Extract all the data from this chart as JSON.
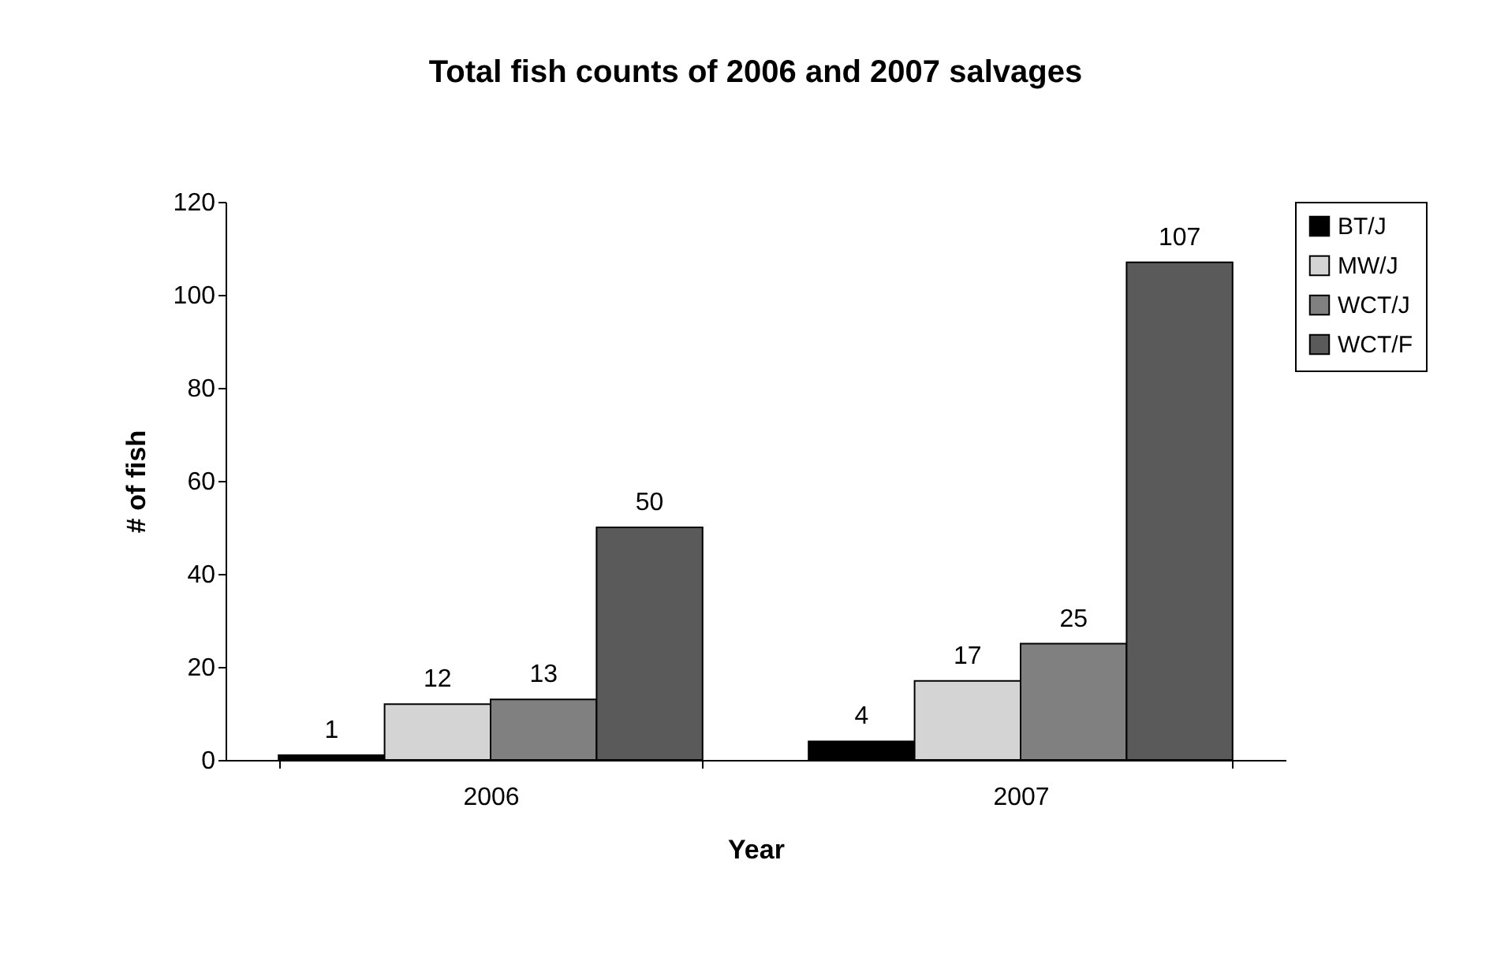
{
  "chart_data": {
    "type": "bar",
    "title": "Total fish counts of 2006 and 2007 salvages",
    "xlabel": "Year",
    "ylabel": "# of fish",
    "categories": [
      "2006",
      "2007"
    ],
    "series": [
      {
        "name": "BT/J",
        "color": "#000000",
        "values": [
          1,
          4
        ]
      },
      {
        "name": "MW/J",
        "color": "#d4d4d4",
        "values": [
          12,
          17
        ]
      },
      {
        "name": "WCT/J",
        "color": "#808080",
        "values": [
          13,
          25
        ]
      },
      {
        "name": "WCT/F",
        "color": "#5a5a5a",
        "values": [
          50,
          107
        ]
      }
    ],
    "ylim": [
      0,
      120
    ],
    "yticks": [
      0,
      20,
      40,
      60,
      80,
      100,
      120
    ],
    "grid": false,
    "legend": "right",
    "data_labels": true
  }
}
